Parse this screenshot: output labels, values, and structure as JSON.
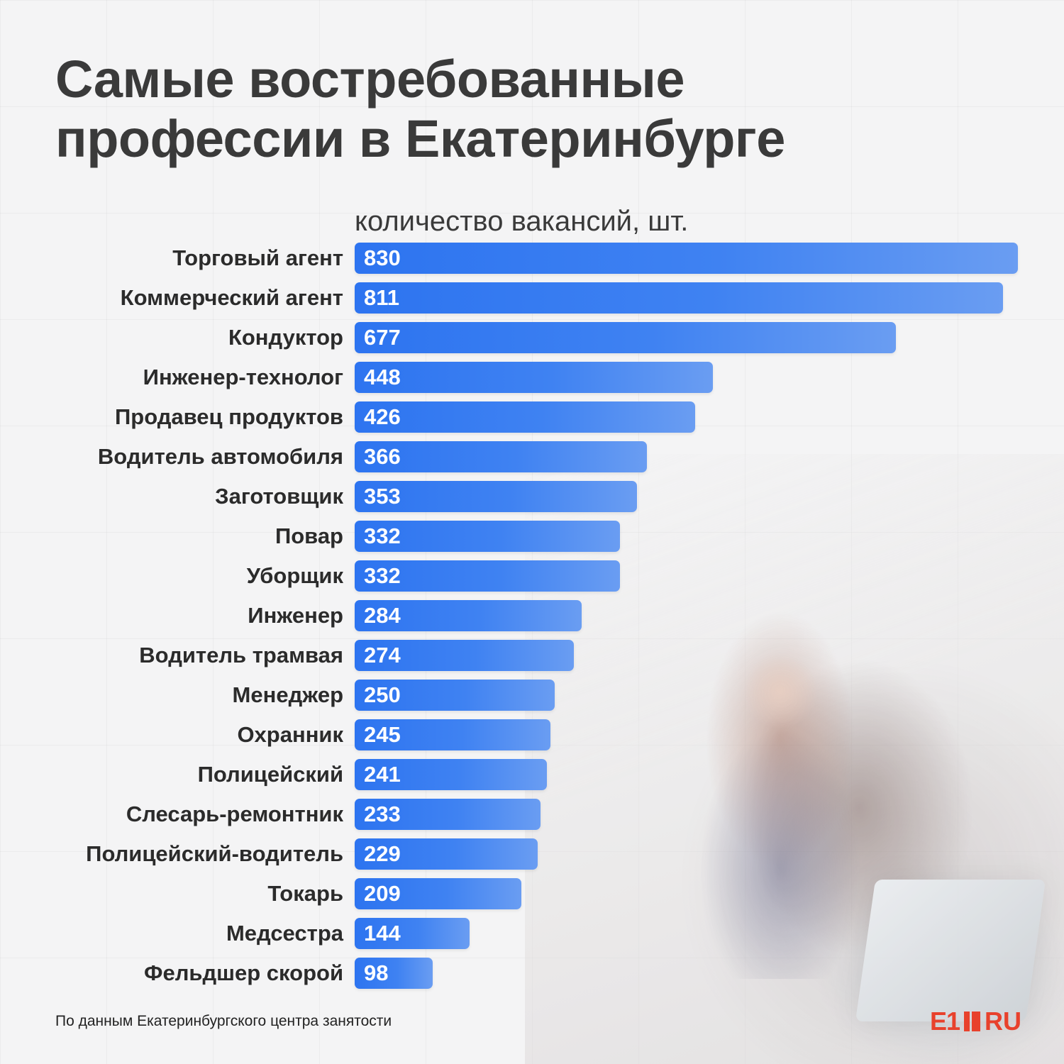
{
  "title": {
    "line1": "Самые востребованные",
    "line2": "профессии в Екатеринбурге"
  },
  "unit_label": "количество вакансий, шт.",
  "source": "По данным Екатеринбургского центра занятости",
  "logo": {
    "brand": "E1",
    "suffix": "RU"
  },
  "colors": {
    "bar": "#3a7cf1",
    "title": "#3a3a3a",
    "logo": "#e8412c"
  },
  "chart_data": {
    "type": "bar",
    "orientation": "horizontal",
    "title": "Самые востребованные профессии в Екатеринбурге",
    "xlabel": "количество вакансий, шт.",
    "ylabel": "",
    "xlim": [
      0,
      830
    ],
    "grid": false,
    "data_labels": "inside-left",
    "categories": [
      "Торговый агент",
      "Коммерческий агент",
      "Кондуктор",
      "Инженер-технолог",
      "Продавец продуктов",
      "Водитель автомобиля",
      "Заготовщик",
      "Повар",
      "Уборщик",
      "Инженер",
      "Водитель трамвая",
      "Менеджер",
      "Охранник",
      "Полицейский",
      "Слесарь-ремонтник",
      "Полицейский-водитель",
      "Токарь",
      "Медсестра",
      "Фельдшер скорой"
    ],
    "values": [
      830,
      811,
      677,
      448,
      426,
      366,
      353,
      332,
      332,
      284,
      274,
      250,
      245,
      241,
      233,
      229,
      209,
      144,
      98
    ]
  }
}
